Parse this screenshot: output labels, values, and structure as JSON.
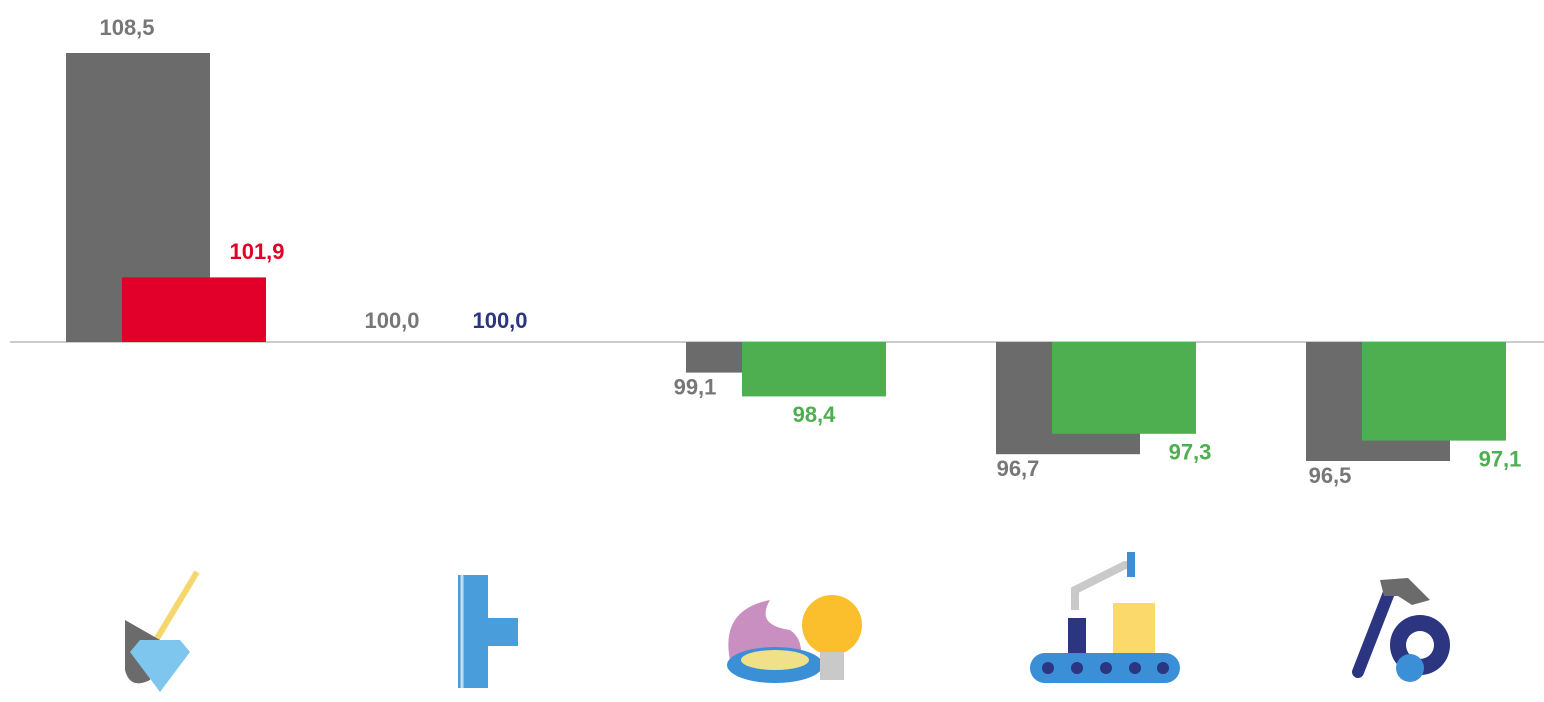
{
  "chart_data": {
    "type": "bar",
    "categories": [
      null,
      null,
      null,
      null,
      null
    ],
    "baseline": 100,
    "ylim": [
      90,
      110
    ],
    "series": [
      {
        "color": "#6b6b6b",
        "label_color": "#777777",
        "values": [
          108.5,
          100.0,
          99.1,
          96.7,
          96.5
        ],
        "value_labels": [
          "108,5",
          "100,0",
          "99,1",
          "96,7",
          "96,5"
        ]
      },
      {
        "colors": [
          "#e2002a",
          "#2b3580",
          "#4daf4f",
          "#4daf4f",
          "#4daf4f"
        ],
        "values": [
          101.9,
          100.0,
          98.4,
          97.3,
          97.1
        ],
        "value_labels": [
          "101,9",
          "100,0",
          "98,4",
          "97,3",
          "97,1"
        ]
      }
    ]
  }
}
